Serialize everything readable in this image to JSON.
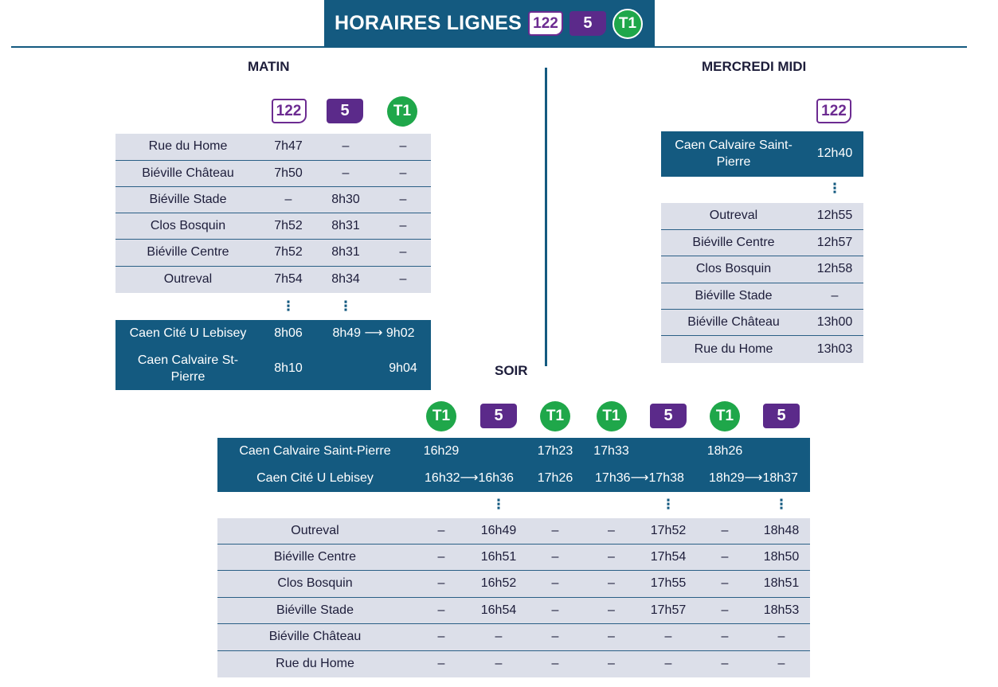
{
  "header": {
    "title": "HORAIRES LIGNES",
    "badges": [
      "122",
      "5",
      "T1"
    ]
  },
  "matin": {
    "title": "MATIN",
    "lines": [
      "122",
      "5",
      "T1"
    ],
    "rows": [
      {
        "stop": "Rue du Home",
        "times": [
          "7h47",
          "–",
          "–"
        ]
      },
      {
        "stop": "Biéville Château",
        "times": [
          "7h50",
          "–",
          "–"
        ]
      },
      {
        "stop": "Biéville Stade",
        "times": [
          "–",
          "8h30",
          "–"
        ]
      },
      {
        "stop": "Clos Bosquin",
        "times": [
          "7h52",
          "8h31",
          "–"
        ]
      },
      {
        "stop": "Biéville Centre",
        "times": [
          "7h52",
          "8h31",
          "–"
        ]
      },
      {
        "stop": "Outreval",
        "times": [
          "7h54",
          "8h34",
          "–"
        ]
      }
    ],
    "continuation": "⋮",
    "dest_rows": [
      {
        "stop": "Caen Cité U Lebisey",
        "times": [
          "8h06",
          "8h49 ⟶ 9h02"
        ]
      },
      {
        "stop": "Caen Calvaire St-Pierre",
        "times": [
          "8h10",
          "9h04"
        ]
      }
    ]
  },
  "mercredi": {
    "title": "MERCREDI MIDI",
    "lines": [
      "122"
    ],
    "origin": {
      "stop": "Caen Calvaire Saint-Pierre",
      "time": "12h40"
    },
    "continuation": "⋮",
    "rows": [
      {
        "stop": "Outreval",
        "time": "12h55"
      },
      {
        "stop": "Biéville Centre",
        "time": "12h57"
      },
      {
        "stop": "Clos Bosquin",
        "time": "12h58"
      },
      {
        "stop": "Biéville Stade",
        "time": "–"
      },
      {
        "stop": "Biéville Château",
        "time": "13h00"
      },
      {
        "stop": "Rue du Home",
        "time": "13h03"
      }
    ]
  },
  "soir": {
    "title": "SOIR",
    "lines": [
      "T1",
      "5",
      "T1",
      "T1",
      "5",
      "T1",
      "5"
    ],
    "origin_rows": [
      {
        "stop": "Caen Calvaire Saint-Pierre",
        "times": [
          "16h29",
          "",
          "17h23",
          "17h33",
          "",
          "18h26",
          ""
        ]
      },
      {
        "stop": "Caen Cité U Lebisey",
        "times": [
          "16h32⟶16h36",
          "",
          "17h26",
          "17h36⟶17h38",
          "",
          "18h29⟶18h37",
          ""
        ]
      }
    ],
    "continuation": "⋮",
    "rows": [
      {
        "stop": "Outreval",
        "times": [
          "–",
          "16h49",
          "–",
          "–",
          "17h52",
          "–",
          "18h48"
        ]
      },
      {
        "stop": "Biéville Centre",
        "times": [
          "–",
          "16h51",
          "–",
          "–",
          "17h54",
          "–",
          "18h50"
        ]
      },
      {
        "stop": "Clos Bosquin",
        "times": [
          "–",
          "16h52",
          "–",
          "–",
          "17h55",
          "–",
          "18h51"
        ]
      },
      {
        "stop": "Biéville Stade",
        "times": [
          "–",
          "16h54",
          "–",
          "–",
          "17h57",
          "–",
          "18h53"
        ]
      },
      {
        "stop": "Biéville Château",
        "times": [
          "–",
          "–",
          "–",
          "–",
          "–",
          "–",
          "–"
        ]
      },
      {
        "stop": "Rue du Home",
        "times": [
          "–",
          "–",
          "–",
          "–",
          "–",
          "–",
          "–"
        ]
      }
    ]
  },
  "colors": {
    "dark_blue": "#145a80",
    "light_row": "#dcdfe9",
    "purple": "#6c2b91",
    "green": "#1fa74a"
  }
}
